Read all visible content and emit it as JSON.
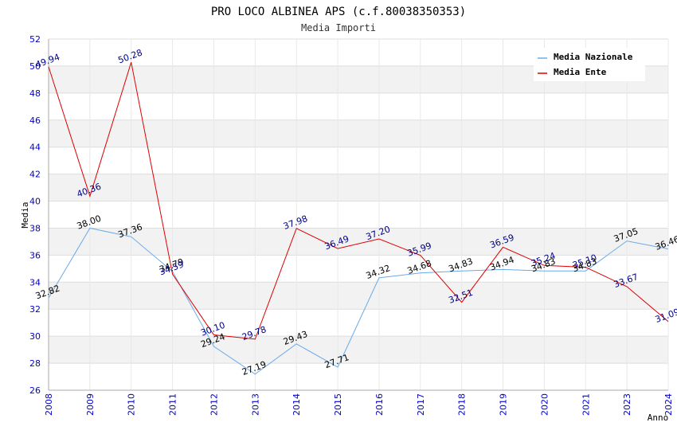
{
  "chart_data": {
    "type": "line",
    "title": "PRO LOCO ALBINEA APS (c.f.80038350353)",
    "subtitle": "Media Importi",
    "xlabel": "Anno",
    "ylabel": "Media",
    "ylim": [
      26,
      52
    ],
    "yticks": [
      26,
      28,
      30,
      32,
      34,
      36,
      38,
      40,
      42,
      44,
      46,
      48,
      50,
      52
    ],
    "categories": [
      "2008",
      "2009",
      "2010",
      "2011",
      "2012",
      "2013",
      "2014",
      "2015",
      "2016",
      "2017",
      "2018",
      "2019",
      "2020",
      "2021",
      "2023",
      "2024"
    ],
    "series": [
      {
        "name": "Media Nazionale",
        "color": "#6aaae8",
        "values": [
          32.82,
          38.0,
          37.36,
          34.79,
          29.24,
          27.19,
          29.43,
          27.71,
          34.32,
          34.68,
          34.83,
          34.94,
          34.83,
          34.83,
          37.05,
          36.46
        ],
        "labels": [
          "32.82",
          "38.00",
          "37.36",
          "34.79",
          "29.24",
          "27.19",
          "29.43",
          "27.71",
          "34.32",
          "34.68",
          "34.83",
          "34.94",
          "34.83",
          "34.83",
          "37.05",
          "36.46"
        ]
      },
      {
        "name": "Media Ente",
        "color": "#dd0000",
        "values": [
          49.94,
          40.36,
          50.28,
          34.59,
          30.1,
          29.78,
          37.98,
          36.49,
          37.2,
          35.99,
          32.51,
          36.59,
          35.24,
          35.1,
          33.67,
          31.09
        ],
        "labels": [
          "49.94",
          "40.36",
          "50.28",
          "34.59",
          "30.10",
          "29.78",
          "37.98",
          "36.49",
          "37.20",
          "35.99",
          "32.51",
          "36.59",
          "35.24",
          "35.10",
          "33.67",
          "31.09"
        ]
      }
    ],
    "legend_position": "top-right",
    "grid": true
  }
}
